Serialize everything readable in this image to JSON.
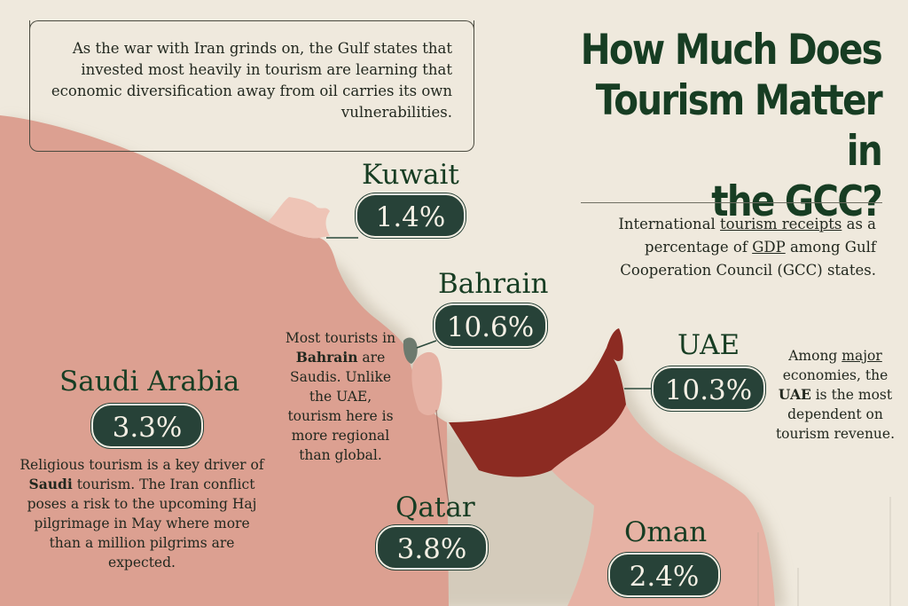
{
  "intro": {
    "text": "As the war with Iran grinds on, the Gulf states that invested most heavily in tourism are learning that economic diversification away from oil carries its own vulnerabilities."
  },
  "title": {
    "line1": "How Much Does",
    "line2": "Tourism Matter in",
    "line3": "the GCC?"
  },
  "subtitle": {
    "pre": "International ",
    "link1": "tourism receipts",
    "mid1": " as a percentage of ",
    "link2": "GDP",
    "post": " among Gulf Cooperation Council (GCC) states."
  },
  "countries": {
    "kuwait": {
      "name": "Kuwait",
      "value": "1.4%"
    },
    "bahrain": {
      "name": "Bahrain",
      "value": "10.6%"
    },
    "uae": {
      "name": "UAE",
      "value": "10.3%"
    },
    "saudi": {
      "name": "Saudi Arabia",
      "value": "3.3%"
    },
    "qatar": {
      "name": "Qatar",
      "value": "3.8%"
    },
    "oman": {
      "name": "Oman",
      "value": "2.4%"
    }
  },
  "notes": {
    "bahrain": {
      "l1": "Most tourists in",
      "bold": "Bahrain",
      "l2b": " are",
      "l3": "Saudis. Unlike",
      "l4": "the UAE,",
      "l5": "tourism here is",
      "l6": "more regional",
      "l7": "than global."
    },
    "uae": {
      "l1a": "Among ",
      "l1link": "major",
      "l2": "economies, the",
      "bold": "UAE",
      "l3b": " is the most",
      "l4": "dependent on",
      "l5": "tourism revenue."
    },
    "saudi": {
      "l1": "Religious tourism is a key driver of",
      "bold": "Saudi",
      "l2b": " tourism. The Iran conflict",
      "l3": "poses a risk to the upcoming Haj",
      "l4": "pilgrimage in May where more",
      "l5": "than a million pilgrims are",
      "l6": "expected."
    }
  },
  "colors": {
    "background": "#efe9dd",
    "land": "#dca091",
    "land_light": "#e6b2a4",
    "uae_highlight": "#8c2b22",
    "bahrain": "#6d7a6e",
    "pill": "#274238",
    "title": "#173d23"
  }
}
